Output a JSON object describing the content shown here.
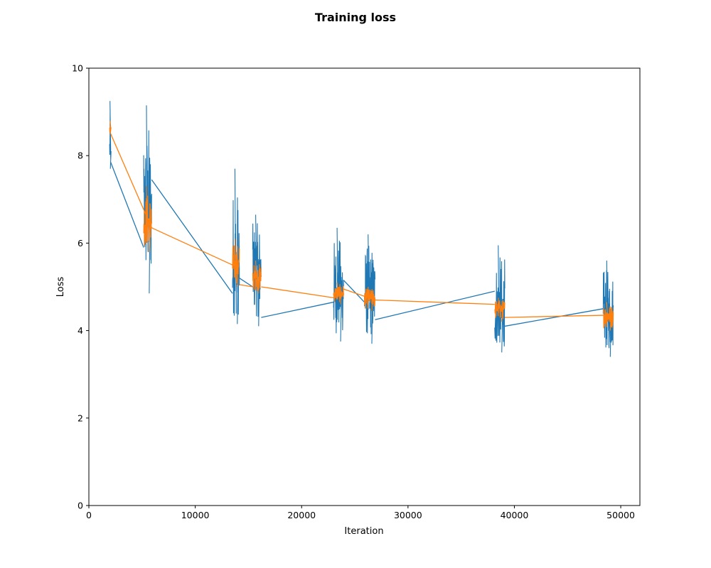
{
  "chart_data": {
    "type": "line",
    "title": "Training loss",
    "xlabel": "Iteration",
    "ylabel": "Loss",
    "xlim": [
      0,
      51800
    ],
    "ylim": [
      0,
      10
    ],
    "xticks": [
      0,
      10000,
      20000,
      30000,
      40000,
      50000
    ],
    "yticks": [
      0,
      2,
      4,
      6,
      8,
      10
    ],
    "grid": false,
    "legend": "none",
    "series": [
      {
        "color": "#1f77b4",
        "segments": [
          {
            "x_start": 1950,
            "x_end": 2050,
            "center": 8.1,
            "low": 7.7,
            "high": 9.25
          },
          {
            "x_start": 5150,
            "x_end": 5900,
            "center": 6.6,
            "low": 4.85,
            "high": 9.15
          },
          {
            "x_start": 13500,
            "x_end": 14150,
            "center": 5.3,
            "low": 4.15,
            "high": 7.7
          },
          {
            "x_start": 15400,
            "x_end": 16200,
            "center": 5.4,
            "low": 4.1,
            "high": 6.65
          },
          {
            "x_start": 23000,
            "x_end": 23950,
            "center": 4.85,
            "low": 3.75,
            "high": 6.35
          },
          {
            "x_start": 25900,
            "x_end": 26900,
            "center": 4.7,
            "low": 3.7,
            "high": 6.2
          },
          {
            "x_start": 38150,
            "x_end": 39100,
            "center": 4.35,
            "low": 3.5,
            "high": 5.95
          },
          {
            "x_start": 48350,
            "x_end": 49300,
            "center": 4.3,
            "low": 3.4,
            "high": 5.6
          }
        ],
        "connectors": [
          [
            [
              2050,
              7.85
            ],
            [
              5150,
              5.9
            ]
          ],
          [
            [
              5900,
              7.45
            ],
            [
              13500,
              4.85
            ]
          ],
          [
            [
              14150,
              5.2
            ],
            [
              15400,
              5.0
            ]
          ],
          [
            [
              16200,
              4.3
            ],
            [
              23000,
              4.65
            ]
          ],
          [
            [
              23950,
              5.15
            ],
            [
              25900,
              4.65
            ]
          ],
          [
            [
              26900,
              4.25
            ],
            [
              38150,
              4.9
            ]
          ],
          [
            [
              39100,
              4.1
            ],
            [
              48350,
              4.5
            ]
          ]
        ]
      },
      {
        "color": "#ff7f0e",
        "segments": [
          {
            "x_start": 1950,
            "x_end": 2050,
            "center": 8.65,
            "low": 8.5,
            "high": 8.8
          },
          {
            "x_start": 5150,
            "x_end": 5900,
            "center": 6.45,
            "low": 5.8,
            "high": 7.3
          },
          {
            "x_start": 13500,
            "x_end": 14150,
            "center": 5.45,
            "low": 5.0,
            "high": 6.1
          },
          {
            "x_start": 15400,
            "x_end": 16200,
            "center": 5.2,
            "low": 4.85,
            "high": 5.6
          },
          {
            "x_start": 23000,
            "x_end": 23950,
            "center": 4.85,
            "low": 4.6,
            "high": 5.1
          },
          {
            "x_start": 25900,
            "x_end": 26900,
            "center": 4.75,
            "low": 4.45,
            "high": 5.0
          },
          {
            "x_start": 38150,
            "x_end": 39100,
            "center": 4.5,
            "low": 4.2,
            "high": 4.75
          },
          {
            "x_start": 48350,
            "x_end": 49300,
            "center": 4.35,
            "low": 4.0,
            "high": 4.65
          }
        ],
        "connectors": [
          [
            [
              2050,
              8.5
            ],
            [
              5900,
              6.35
            ]
          ],
          [
            [
              5900,
              6.35
            ],
            [
              13500,
              5.5
            ]
          ],
          [
            [
              14150,
              5.05
            ],
            [
              15400,
              5.0
            ]
          ],
          [
            [
              16200,
              5.0
            ],
            [
              23000,
              4.75
            ]
          ],
          [
            [
              23950,
              4.95
            ],
            [
              26900,
              4.7
            ]
          ],
          [
            [
              26900,
              4.7
            ],
            [
              38150,
              4.6
            ]
          ],
          [
            [
              39100,
              4.3
            ],
            [
              48350,
              4.35
            ]
          ],
          [
            [
              48350,
              4.35
            ],
            [
              49300,
              4.4
            ]
          ]
        ]
      }
    ]
  }
}
